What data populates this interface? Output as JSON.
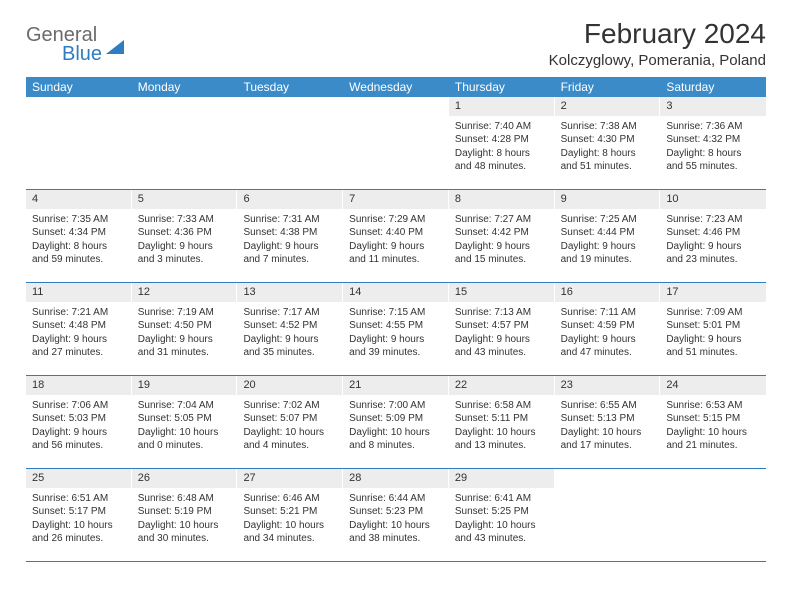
{
  "colors": {
    "header_bg": "#3b8bc8",
    "header_text": "#ffffff",
    "daynum_bg": "#ededed",
    "rule": "#2d7dc0",
    "text": "#333333",
    "logo_gray": "#6b6b6b",
    "logo_blue": "#2d7dc0",
    "background": "#ffffff"
  },
  "typography": {
    "title_fontsize": 28,
    "location_fontsize": 15,
    "dayheader_fontsize": 12,
    "cell_fontsize": 10,
    "daynum_fontsize": 11
  },
  "logo": {
    "line1": "General",
    "line2": "Blue"
  },
  "title": "February 2024",
  "location": "Kolczyglowy, Pomerania, Poland",
  "day_names": [
    "Sunday",
    "Monday",
    "Tuesday",
    "Wednesday",
    "Thursday",
    "Friday",
    "Saturday"
  ],
  "weeks": [
    [
      null,
      null,
      null,
      null,
      {
        "n": "1",
        "sr": "Sunrise: 7:40 AM",
        "ss": "Sunset: 4:28 PM",
        "d1": "Daylight: 8 hours",
        "d2": "and 48 minutes."
      },
      {
        "n": "2",
        "sr": "Sunrise: 7:38 AM",
        "ss": "Sunset: 4:30 PM",
        "d1": "Daylight: 8 hours",
        "d2": "and 51 minutes."
      },
      {
        "n": "3",
        "sr": "Sunrise: 7:36 AM",
        "ss": "Sunset: 4:32 PM",
        "d1": "Daylight: 8 hours",
        "d2": "and 55 minutes."
      }
    ],
    [
      {
        "n": "4",
        "sr": "Sunrise: 7:35 AM",
        "ss": "Sunset: 4:34 PM",
        "d1": "Daylight: 8 hours",
        "d2": "and 59 minutes."
      },
      {
        "n": "5",
        "sr": "Sunrise: 7:33 AM",
        "ss": "Sunset: 4:36 PM",
        "d1": "Daylight: 9 hours",
        "d2": "and 3 minutes."
      },
      {
        "n": "6",
        "sr": "Sunrise: 7:31 AM",
        "ss": "Sunset: 4:38 PM",
        "d1": "Daylight: 9 hours",
        "d2": "and 7 minutes."
      },
      {
        "n": "7",
        "sr": "Sunrise: 7:29 AM",
        "ss": "Sunset: 4:40 PM",
        "d1": "Daylight: 9 hours",
        "d2": "and 11 minutes."
      },
      {
        "n": "8",
        "sr": "Sunrise: 7:27 AM",
        "ss": "Sunset: 4:42 PM",
        "d1": "Daylight: 9 hours",
        "d2": "and 15 minutes."
      },
      {
        "n": "9",
        "sr": "Sunrise: 7:25 AM",
        "ss": "Sunset: 4:44 PM",
        "d1": "Daylight: 9 hours",
        "d2": "and 19 minutes."
      },
      {
        "n": "10",
        "sr": "Sunrise: 7:23 AM",
        "ss": "Sunset: 4:46 PM",
        "d1": "Daylight: 9 hours",
        "d2": "and 23 minutes."
      }
    ],
    [
      {
        "n": "11",
        "sr": "Sunrise: 7:21 AM",
        "ss": "Sunset: 4:48 PM",
        "d1": "Daylight: 9 hours",
        "d2": "and 27 minutes."
      },
      {
        "n": "12",
        "sr": "Sunrise: 7:19 AM",
        "ss": "Sunset: 4:50 PM",
        "d1": "Daylight: 9 hours",
        "d2": "and 31 minutes."
      },
      {
        "n": "13",
        "sr": "Sunrise: 7:17 AM",
        "ss": "Sunset: 4:52 PM",
        "d1": "Daylight: 9 hours",
        "d2": "and 35 minutes."
      },
      {
        "n": "14",
        "sr": "Sunrise: 7:15 AM",
        "ss": "Sunset: 4:55 PM",
        "d1": "Daylight: 9 hours",
        "d2": "and 39 minutes."
      },
      {
        "n": "15",
        "sr": "Sunrise: 7:13 AM",
        "ss": "Sunset: 4:57 PM",
        "d1": "Daylight: 9 hours",
        "d2": "and 43 minutes."
      },
      {
        "n": "16",
        "sr": "Sunrise: 7:11 AM",
        "ss": "Sunset: 4:59 PM",
        "d1": "Daylight: 9 hours",
        "d2": "and 47 minutes."
      },
      {
        "n": "17",
        "sr": "Sunrise: 7:09 AM",
        "ss": "Sunset: 5:01 PM",
        "d1": "Daylight: 9 hours",
        "d2": "and 51 minutes."
      }
    ],
    [
      {
        "n": "18",
        "sr": "Sunrise: 7:06 AM",
        "ss": "Sunset: 5:03 PM",
        "d1": "Daylight: 9 hours",
        "d2": "and 56 minutes."
      },
      {
        "n": "19",
        "sr": "Sunrise: 7:04 AM",
        "ss": "Sunset: 5:05 PM",
        "d1": "Daylight: 10 hours",
        "d2": "and 0 minutes."
      },
      {
        "n": "20",
        "sr": "Sunrise: 7:02 AM",
        "ss": "Sunset: 5:07 PM",
        "d1": "Daylight: 10 hours",
        "d2": "and 4 minutes."
      },
      {
        "n": "21",
        "sr": "Sunrise: 7:00 AM",
        "ss": "Sunset: 5:09 PM",
        "d1": "Daylight: 10 hours",
        "d2": "and 8 minutes."
      },
      {
        "n": "22",
        "sr": "Sunrise: 6:58 AM",
        "ss": "Sunset: 5:11 PM",
        "d1": "Daylight: 10 hours",
        "d2": "and 13 minutes."
      },
      {
        "n": "23",
        "sr": "Sunrise: 6:55 AM",
        "ss": "Sunset: 5:13 PM",
        "d1": "Daylight: 10 hours",
        "d2": "and 17 minutes."
      },
      {
        "n": "24",
        "sr": "Sunrise: 6:53 AM",
        "ss": "Sunset: 5:15 PM",
        "d1": "Daylight: 10 hours",
        "d2": "and 21 minutes."
      }
    ],
    [
      {
        "n": "25",
        "sr": "Sunrise: 6:51 AM",
        "ss": "Sunset: 5:17 PM",
        "d1": "Daylight: 10 hours",
        "d2": "and 26 minutes."
      },
      {
        "n": "26",
        "sr": "Sunrise: 6:48 AM",
        "ss": "Sunset: 5:19 PM",
        "d1": "Daylight: 10 hours",
        "d2": "and 30 minutes."
      },
      {
        "n": "27",
        "sr": "Sunrise: 6:46 AM",
        "ss": "Sunset: 5:21 PM",
        "d1": "Daylight: 10 hours",
        "d2": "and 34 minutes."
      },
      {
        "n": "28",
        "sr": "Sunrise: 6:44 AM",
        "ss": "Sunset: 5:23 PM",
        "d1": "Daylight: 10 hours",
        "d2": "and 38 minutes."
      },
      {
        "n": "29",
        "sr": "Sunrise: 6:41 AM",
        "ss": "Sunset: 5:25 PM",
        "d1": "Daylight: 10 hours",
        "d2": "and 43 minutes."
      },
      null,
      null
    ]
  ]
}
